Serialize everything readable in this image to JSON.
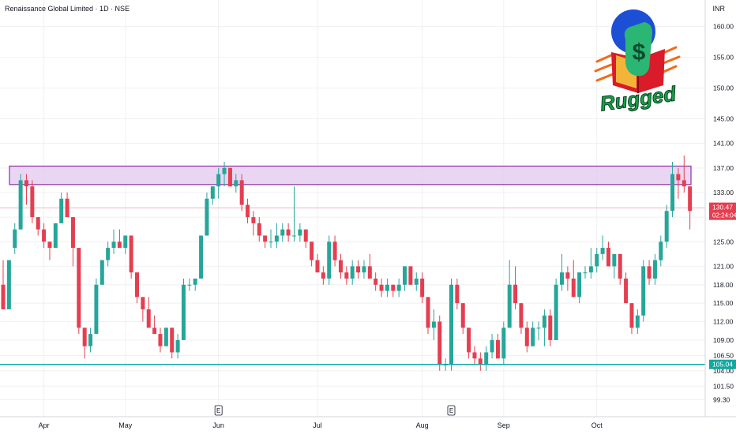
{
  "header": {
    "title": "Renaissance Global Limited · 1D · NSE",
    "currency": "INR"
  },
  "logo": {
    "text": "Rugged",
    "symbol": "$"
  },
  "earnings_marker": "E",
  "colors": {
    "up": "#26a69a",
    "down": "#e53e50",
    "zone_fill": "#e2c8ef",
    "zone_stroke": "#8e2fa0",
    "support": "#12a8a0",
    "price": "#e53e50",
    "grid": "#eef0f3"
  },
  "chart_data": {
    "type": "candlestick",
    "title": "Renaissance Global Limited · 1D · NSE",
    "currency": "INR",
    "ylim": [
      98.2,
      161.5
    ],
    "y_ticks": [
      "160.00",
      "155.00",
      "150.00",
      "145.00",
      "141.00",
      "137.00",
      "133.00",
      "129.00",
      "125.00",
      "121.00",
      "118.00",
      "115.00",
      "112.00",
      "109.00",
      "106.50",
      "104.00",
      "101.50",
      "99.30"
    ],
    "x_ticks": [
      {
        "label": "Apr",
        "index": 7
      },
      {
        "label": "May",
        "index": 21
      },
      {
        "label": "Jun",
        "index": 37
      },
      {
        "label": "Jul",
        "index": 54
      },
      {
        "label": "Aug",
        "index": 72
      },
      {
        "label": "Sep",
        "index": 86
      },
      {
        "label": "Oct",
        "index": 102
      }
    ],
    "earnings_indices": [
      37,
      77
    ],
    "resistance_zone": [
      134.3,
      137.3
    ],
    "support_level": 105.04,
    "support_label": "105.04",
    "last_price": 130.47,
    "last_price_label": "130.47",
    "countdown": "02:24:04",
    "candles": [
      [
        118,
        122,
        114,
        114
      ],
      [
        114,
        122,
        114,
        122
      ],
      [
        124,
        128,
        123,
        127
      ],
      [
        127,
        136,
        127,
        135
      ],
      [
        135,
        136,
        131,
        134
      ],
      [
        134,
        135,
        128,
        129
      ],
      [
        129,
        129,
        126,
        127
      ],
      [
        127,
        128,
        124,
        125
      ],
      [
        125,
        125,
        122,
        124
      ],
      [
        124,
        128,
        124,
        128
      ],
      [
        128,
        133,
        128,
        132
      ],
      [
        132,
        133,
        129,
        129
      ],
      [
        129,
        129,
        121,
        124
      ],
      [
        124,
        124,
        110,
        111
      ],
      [
        111,
        111,
        106,
        108
      ],
      [
        108,
        111,
        107,
        110
      ],
      [
        110,
        119,
        110,
        118
      ],
      [
        118,
        122,
        118,
        122
      ],
      [
        122,
        125,
        121,
        124
      ],
      [
        124,
        127,
        123,
        125
      ],
      [
        125,
        127,
        124,
        124
      ],
      [
        124,
        126,
        123,
        126
      ],
      [
        126,
        126,
        119,
        120
      ],
      [
        120,
        120,
        115,
        116
      ],
      [
        116,
        116,
        112,
        114
      ],
      [
        114,
        116,
        111,
        111
      ],
      [
        111,
        113,
        110,
        110
      ],
      [
        110,
        111,
        107,
        108
      ],
      [
        108,
        111,
        108,
        111
      ],
      [
        111,
        111,
        106,
        107
      ],
      [
        107,
        110,
        106,
        109
      ],
      [
        109,
        119,
        109,
        118
      ],
      [
        118,
        119,
        117,
        118
      ],
      [
        118,
        119,
        117,
        119
      ],
      [
        119,
        126,
        119,
        126
      ],
      [
        126,
        133,
        126,
        132
      ],
      [
        132,
        134,
        131,
        134
      ],
      [
        134,
        137,
        132,
        136
      ],
      [
        136,
        138,
        134,
        137
      ],
      [
        137,
        137,
        134,
        134
      ],
      [
        134,
        136,
        133,
        135
      ],
      [
        135,
        136,
        130,
        131
      ],
      [
        131,
        132,
        128,
        129
      ],
      [
        129,
        130,
        126,
        128
      ],
      [
        128,
        129,
        125,
        126
      ],
      [
        126,
        126,
        124,
        125
      ],
      [
        125,
        127,
        124,
        125
      ],
      [
        125,
        128,
        124,
        126
      ],
      [
        126,
        128,
        125,
        127
      ],
      [
        127,
        128,
        125,
        126
      ],
      [
        126,
        134,
        125,
        126
      ],
      [
        126,
        128,
        125,
        127
      ],
      [
        127,
        127,
        124,
        125
      ],
      [
        125,
        125,
        121,
        122
      ],
      [
        122,
        123,
        120,
        120
      ],
      [
        120,
        121,
        118,
        119
      ],
      [
        119,
        126,
        118,
        125
      ],
      [
        125,
        126,
        121,
        122
      ],
      [
        122,
        123,
        119,
        120
      ],
      [
        120,
        121,
        118,
        119
      ],
      [
        119,
        122,
        118,
        121
      ],
      [
        121,
        122,
        119,
        120
      ],
      [
        120,
        122,
        119,
        121
      ],
      [
        121,
        123,
        119,
        119
      ],
      [
        119,
        120,
        117,
        118
      ],
      [
        118,
        119,
        116,
        117
      ],
      [
        117,
        119,
        116,
        118
      ],
      [
        118,
        118,
        116,
        117
      ],
      [
        117,
        119,
        116,
        118
      ],
      [
        118,
        121,
        117,
        121
      ],
      [
        121,
        121,
        118,
        118
      ],
      [
        118,
        120,
        117,
        119
      ],
      [
        119,
        120,
        115,
        116
      ],
      [
        116,
        116,
        110,
        111
      ],
      [
        111,
        114,
        109,
        112
      ],
      [
        112,
        113,
        104,
        105
      ],
      [
        105,
        106,
        104,
        105
      ],
      [
        105,
        119,
        104,
        118
      ],
      [
        118,
        119,
        114,
        115
      ],
      [
        115,
        115,
        110,
        111
      ],
      [
        111,
        111,
        106,
        107
      ],
      [
        107,
        108,
        105,
        106
      ],
      [
        106,
        107,
        104,
        105
      ],
      [
        105,
        108,
        104,
        107
      ],
      [
        107,
        110,
        106,
        109
      ],
      [
        109,
        110,
        106,
        106
      ],
      [
        106,
        112,
        105,
        111
      ],
      [
        111,
        122,
        111,
        118
      ],
      [
        118,
        121,
        114,
        115
      ],
      [
        115,
        115,
        110,
        111
      ],
      [
        111,
        112,
        107,
        108
      ],
      [
        108,
        112,
        108,
        111
      ],
      [
        111,
        112,
        109,
        111
      ],
      [
        111,
        114,
        108,
        113
      ],
      [
        113,
        114,
        108,
        109
      ],
      [
        109,
        119,
        109,
        118
      ],
      [
        118,
        123,
        117,
        120
      ],
      [
        120,
        121,
        117,
        119
      ],
      [
        119,
        122,
        116,
        116
      ],
      [
        116,
        120,
        115,
        120
      ],
      [
        120,
        121,
        119,
        120
      ],
      [
        120,
        124,
        119,
        121
      ],
      [
        121,
        124,
        120,
        123
      ],
      [
        123,
        126,
        122,
        124
      ],
      [
        124,
        125,
        121,
        121
      ],
      [
        121,
        123,
        119,
        123
      ],
      [
        123,
        123,
        118,
        119
      ],
      [
        119,
        120,
        115,
        115
      ],
      [
        115,
        115,
        110,
        111
      ],
      [
        111,
        114,
        110,
        113
      ],
      [
        113,
        122,
        112,
        121
      ],
      [
        121,
        122,
        118,
        119
      ],
      [
        119,
        123,
        118,
        122
      ],
      [
        122,
        126,
        121,
        125
      ],
      [
        125,
        131,
        124,
        130
      ],
      [
        130,
        138,
        129,
        136
      ],
      [
        136,
        137,
        132,
        135
      ],
      [
        135,
        139,
        133,
        134
      ],
      [
        134,
        134,
        127,
        130
      ]
    ]
  }
}
